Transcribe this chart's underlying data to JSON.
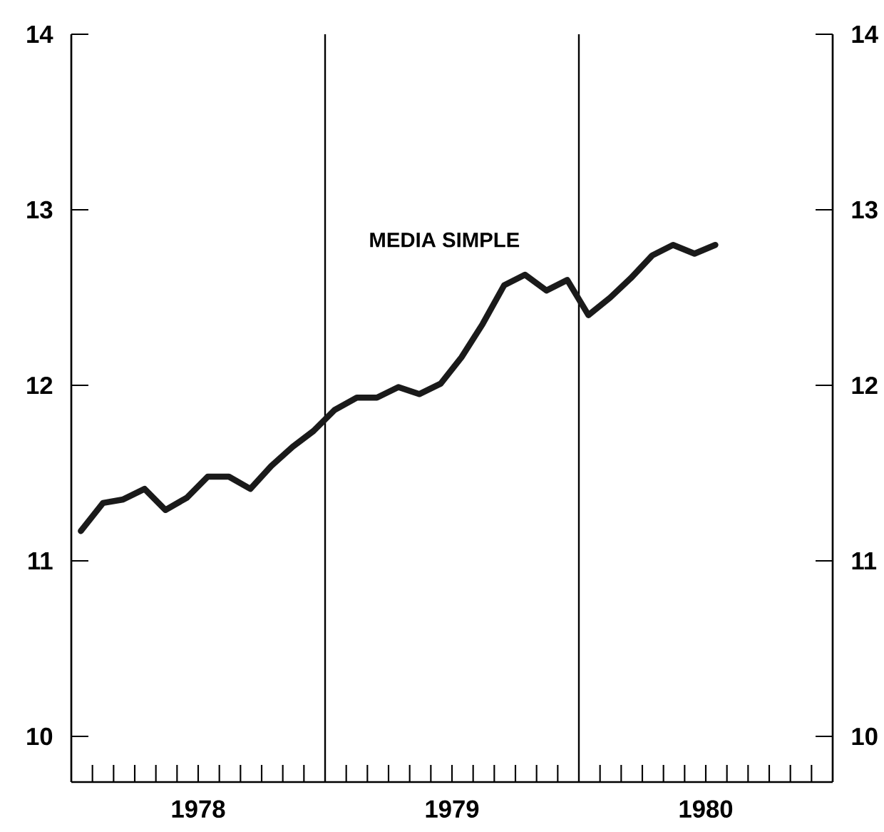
{
  "chart_data": {
    "type": "line",
    "x": [
      "1978-01-15",
      "1978-02-15",
      "1978-03-15",
      "1978-04-15",
      "1978-05-15",
      "1978-06-15",
      "1978-07-15",
      "1978-08-15",
      "1978-09-15",
      "1978-10-15",
      "1978-11-15",
      "1978-12-15",
      "1979-01-15",
      "1979-02-15",
      "1979-03-15",
      "1979-04-15",
      "1979-05-15",
      "1979-06-15",
      "1979-07-15",
      "1979-08-15",
      "1979-09-15",
      "1979-10-15",
      "1979-11-15",
      "1979-12-15",
      "1980-01-15",
      "1980-02-15",
      "1980-03-15",
      "1980-04-15",
      "1980-05-15",
      "1980-06-15",
      "1980-07-15"
    ],
    "series": [
      {
        "color": "#1a1a1a",
        "values": [
          11.17,
          11.33,
          11.35,
          11.41,
          11.29,
          11.36,
          11.48,
          11.48,
          11.41,
          11.54,
          11.65,
          11.74,
          11.86,
          11.93,
          11.93,
          11.99,
          11.95,
          12.01,
          12.16,
          12.35,
          12.57,
          12.63,
          12.54,
          12.6,
          12.4,
          12.5,
          12.61,
          12.74,
          12.8,
          12.75,
          12.8
        ]
      }
    ],
    "annotations": [
      "MEDIA SIMPLE"
    ],
    "xlim": [
      "1978-01-01",
      "1981-01-01"
    ],
    "xticks": [
      {
        "value": "1978-02-01",
        "label": null
      },
      {
        "value": "1978-03-01",
        "label": null
      },
      {
        "value": "1978-04-01",
        "label": null
      },
      {
        "value": "1978-05-01",
        "label": null
      },
      {
        "value": "1978-06-01",
        "label": null
      },
      {
        "value": "1978-07-01",
        "label": "1978"
      },
      {
        "value": "1978-08-01",
        "label": null
      },
      {
        "value": "1978-09-01",
        "label": null
      },
      {
        "value": "1978-10-01",
        "label": null
      },
      {
        "value": "1978-11-01",
        "label": null
      },
      {
        "value": "1978-12-01",
        "label": null
      },
      {
        "value": "1979-02-01",
        "label": null
      },
      {
        "value": "1979-03-01",
        "label": null
      },
      {
        "value": "1979-04-01",
        "label": null
      },
      {
        "value": "1979-05-01",
        "label": null
      },
      {
        "value": "1979-06-01",
        "label": null
      },
      {
        "value": "1979-07-01",
        "label": "1979"
      },
      {
        "value": "1979-08-01",
        "label": null
      },
      {
        "value": "1979-09-01",
        "label": null
      },
      {
        "value": "1979-10-01",
        "label": null
      },
      {
        "value": "1979-11-01",
        "label": null
      },
      {
        "value": "1979-12-01",
        "label": null
      },
      {
        "value": "1980-02-01",
        "label": null
      },
      {
        "value": "1980-03-01",
        "label": null
      },
      {
        "value": "1980-04-01",
        "label": null
      },
      {
        "value": "1980-05-01",
        "label": null
      },
      {
        "value": "1980-06-01",
        "label": null
      },
      {
        "value": "1980-07-01",
        "label": "1980"
      },
      {
        "value": "1980-08-01",
        "label": null
      },
      {
        "value": "1980-09-01",
        "label": null
      },
      {
        "value": "1980-10-01",
        "label": null
      },
      {
        "value": "1980-11-01",
        "label": null
      },
      {
        "value": "1980-12-01",
        "label": null
      }
    ],
    "ylim": [
      9.74,
      14
    ],
    "yticks": [
      10,
      11,
      12,
      13,
      14
    ],
    "y2lim": [
      9.74,
      14
    ],
    "y2ticks": [
      10,
      11,
      12,
      13,
      14
    ],
    "ref_lines": [
      {
        "axis": "x",
        "value": "1979-01-01"
      },
      {
        "axis": "x",
        "value": "1980-01-01"
      }
    ],
    "line_style": "solid",
    "marker": "none",
    "grid": false
  }
}
